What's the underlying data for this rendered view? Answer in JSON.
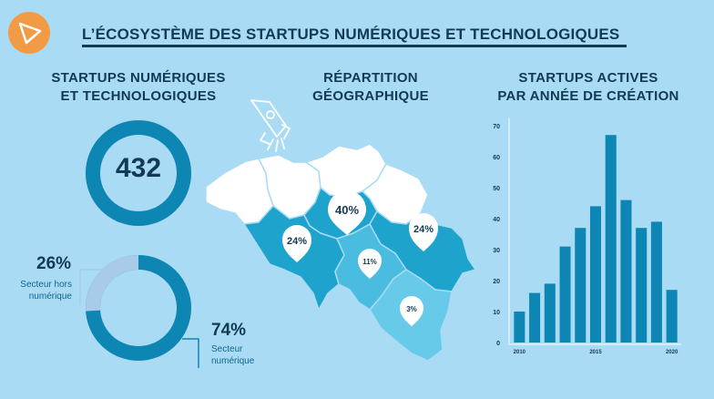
{
  "header": {
    "title": "L’ÉCOSYSTÈME DES STARTUPS NUMÉRIQUES ET TECHNOLOGIQUES",
    "logo_icon": "paper-plane-icon"
  },
  "colors": {
    "background": "#a9dbf5",
    "dark_blue": "#0e86b3",
    "light_blue": "#a8cbea",
    "map_dark": "#1da3cc",
    "map_mid": "#49bce0",
    "map_light": "#67cae9",
    "accent_orange": "#f39a44",
    "text_dark": "#123a52"
  },
  "startups": {
    "title_line1": "STARTUPS NUMÉRIQUES",
    "title_line2": "ET TECHNOLOGIQUES",
    "total": "432"
  },
  "sector_split": {
    "non_digital_pct": "26%",
    "non_digital_value": 26,
    "non_digital_label_line1": "Secteur hors",
    "non_digital_label_line2": "numérique",
    "digital_pct": "74%",
    "digital_value": 74,
    "digital_label_line1": "Secteur",
    "digital_label_line2": "numérique"
  },
  "geography": {
    "title_line1": "RÉPARTITION",
    "title_line2": "GÉOGRAPHIQUE",
    "rocket_icon": "rocket-icon",
    "pins": [
      {
        "name": "pin-40",
        "label": "40%",
        "value": 40
      },
      {
        "name": "pin-24-west",
        "label": "24%",
        "value": 24
      },
      {
        "name": "pin-24-east",
        "label": "24%",
        "value": 24
      },
      {
        "name": "pin-11",
        "label": "11%",
        "value": 11
      },
      {
        "name": "pin-3",
        "label": "3%",
        "value": 3
      }
    ]
  },
  "chart_data": {
    "type": "bar",
    "title": "STARTUPS ACTIVES PAR ANNÉE DE CRÉATION",
    "title_line1": "STARTUPS ACTIVES",
    "title_line2": "PAR ANNÉE DE CRÉATION",
    "x": [
      2010,
      2011,
      2012,
      2013,
      2014,
      2015,
      2016,
      2017,
      2018,
      2019,
      2020
    ],
    "values": [
      10,
      16,
      19,
      31,
      37,
      44,
      67,
      46,
      37,
      39,
      17
    ],
    "x_ticks": [
      "2010",
      "2015",
      "2020"
    ],
    "y_ticks": [
      "0",
      "10",
      "20",
      "30",
      "40",
      "50",
      "60",
      "70"
    ],
    "ylim": [
      0,
      70
    ],
    "grid": false,
    "bar_color": "#0e86b3"
  }
}
